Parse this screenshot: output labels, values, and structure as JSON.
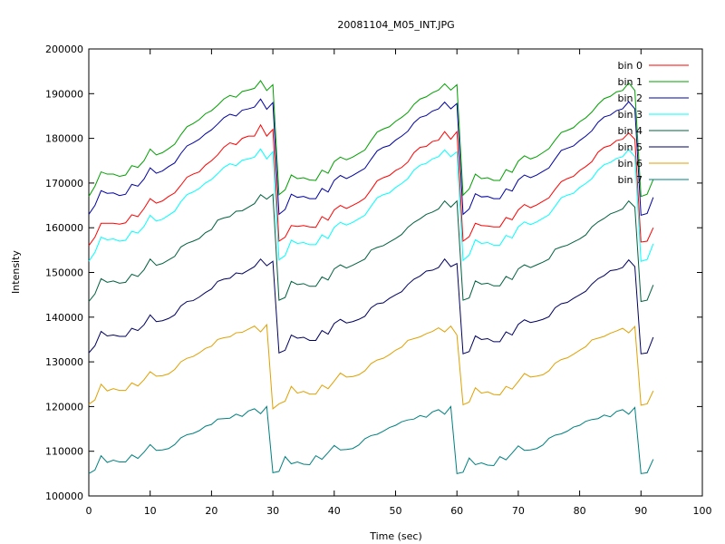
{
  "chart_data": {
    "type": "line",
    "title": "20081104_M05_INT.JPG",
    "xlabel": "Time (sec)",
    "ylabel": "Intensity",
    "xlim": [
      0,
      100
    ],
    "ylim": [
      100000,
      200000
    ],
    "x_ticks": [
      0,
      10,
      20,
      30,
      40,
      50,
      60,
      70,
      80,
      90,
      100
    ],
    "y_ticks": [
      100000,
      110000,
      120000,
      130000,
      140000,
      150000,
      160000,
      170000,
      180000,
      190000,
      200000
    ],
    "x_tick_labels": [
      "0",
      "10",
      "20",
      "30",
      "40",
      "50",
      "60",
      "70",
      "80",
      "90",
      "100"
    ],
    "y_tick_labels": [
      "100000",
      "110000",
      "120000",
      "130000",
      "140000",
      "150000",
      "160000",
      "170000",
      "180000",
      "190000",
      "200000"
    ],
    "legend_position": "top-right",
    "grid": false,
    "x": [
      0,
      1,
      2,
      3,
      4,
      5,
      6,
      7,
      8,
      9,
      10,
      11,
      12,
      13,
      14,
      15,
      16,
      17,
      18,
      19,
      20,
      21,
      22,
      23,
      24,
      25,
      26,
      27,
      28,
      29,
      30,
      31,
      32,
      33,
      34,
      35,
      36,
      37,
      38,
      39,
      40,
      41,
      42,
      43,
      44,
      45,
      46,
      47,
      48,
      49,
      50,
      51,
      52,
      53,
      54,
      55,
      56,
      57,
      58,
      59,
      60,
      61,
      62,
      63,
      64,
      65,
      66,
      67,
      68,
      69,
      70,
      71,
      72,
      73,
      74,
      75,
      76,
      77,
      78,
      79,
      80,
      81,
      82,
      83,
      84,
      85,
      86,
      87,
      88,
      89,
      90,
      91,
      92
    ],
    "series": [
      {
        "name": "bin 0",
        "color": "#ff0000",
        "values": [
          156000,
          157900,
          161000,
          161000,
          161000,
          160800,
          161100,
          162900,
          162500,
          164300,
          166500,
          165500,
          166000,
          167000,
          167800,
          169500,
          171300,
          172000,
          172500,
          174000,
          175000,
          176300,
          178000,
          179000,
          178600,
          180000,
          180500,
          180500,
          183000,
          180500,
          182000,
          157000,
          157900,
          160500,
          160300,
          160500,
          160200,
          160100,
          162500,
          161700,
          164000,
          165000,
          164300,
          165000,
          165700,
          166600,
          168500,
          170500,
          171200,
          171700,
          172800,
          173500,
          174700,
          176800,
          178000,
          178200,
          179300,
          179600,
          181500,
          179800,
          181500,
          157000,
          158000,
          161000,
          160500,
          160400,
          160200,
          160200,
          162300,
          161800,
          164000,
          165200,
          164500,
          165100,
          165900,
          166700,
          168600,
          170300,
          171000,
          171500,
          172800,
          173700,
          174800,
          176900,
          178000,
          178400,
          179500,
          179800,
          181200,
          179800,
          156800,
          157000,
          160000
        ]
      },
      {
        "name": "bin 1",
        "color": "#00a000",
        "values": [
          167000,
          169300,
          172500,
          172000,
          172000,
          171500,
          171800,
          173900,
          173500,
          175000,
          177600,
          176300,
          176800,
          177700,
          178700,
          180800,
          182600,
          183300,
          184200,
          185500,
          186200,
          187400,
          188800,
          189600,
          189200,
          190500,
          190800,
          191200,
          192900,
          190700,
          192000,
          167400,
          168500,
          171800,
          171000,
          171200,
          170700,
          170600,
          172900,
          172200,
          174800,
          175800,
          175200,
          175800,
          176600,
          177400,
          179500,
          181400,
          182100,
          182600,
          183800,
          184700,
          185800,
          187600,
          188800,
          189300,
          190200,
          190800,
          192200,
          190800,
          192000,
          167300,
          168700,
          172000,
          171000,
          171200,
          170600,
          170600,
          173000,
          172400,
          174900,
          176100,
          175400,
          175900,
          176800,
          177700,
          179600,
          181300,
          181800,
          182400,
          183700,
          184600,
          185900,
          187600,
          188900,
          189400,
          190400,
          190700,
          192400,
          190700,
          167000,
          167500,
          170800
        ]
      },
      {
        "name": "bin 2",
        "color": "#0000a0",
        "values": [
          163000,
          165000,
          168300,
          167700,
          167800,
          167200,
          167500,
          169700,
          169300,
          170900,
          173400,
          172200,
          172700,
          173700,
          174500,
          176600,
          178300,
          179000,
          179800,
          181000,
          181900,
          183200,
          184600,
          185400,
          185000,
          186300,
          186600,
          187000,
          188800,
          186500,
          188000,
          163000,
          164100,
          167500,
          166800,
          167000,
          166500,
          166500,
          168800,
          168000,
          170600,
          171700,
          171000,
          171700,
          172500,
          173300,
          175300,
          177200,
          178000,
          178400,
          179600,
          180500,
          181600,
          183500,
          184700,
          185100,
          186100,
          186600,
          188100,
          186600,
          187800,
          163000,
          164200,
          167600,
          166900,
          167000,
          166500,
          166500,
          168700,
          168200,
          170700,
          171800,
          171200,
          171800,
          172600,
          173400,
          175400,
          177300,
          177800,
          178300,
          179500,
          180500,
          181700,
          183600,
          184800,
          185200,
          186200,
          186600,
          188200,
          186600,
          162800,
          163200,
          166800
        ]
      },
      {
        "name": "bin 3",
        "color": "#00ffff",
        "values": [
          152500,
          154500,
          157900,
          157300,
          157500,
          157000,
          157200,
          159200,
          158800,
          160300,
          162800,
          161500,
          161900,
          162800,
          163700,
          165800,
          167400,
          168000,
          168800,
          170000,
          170800,
          172100,
          173500,
          174300,
          173900,
          175100,
          175400,
          175800,
          177600,
          175400,
          177000,
          152800,
          153800,
          157200,
          156500,
          156700,
          156200,
          156200,
          158400,
          157600,
          160100,
          161200,
          160600,
          161200,
          162000,
          162800,
          164800,
          166700,
          167400,
          167800,
          169000,
          169900,
          171000,
          172900,
          174000,
          174400,
          175400,
          175900,
          177400,
          175900,
          177000,
          152700,
          153900,
          157300,
          156500,
          156700,
          156100,
          156100,
          158300,
          157700,
          160200,
          161300,
          160700,
          161300,
          162100,
          162900,
          164800,
          166700,
          167300,
          167700,
          169000,
          169900,
          171000,
          172900,
          174100,
          174600,
          175500,
          175900,
          177500,
          175900,
          152500,
          152900,
          156400
        ]
      },
      {
        "name": "bin 4",
        "color": "#006040",
        "values": [
          143500,
          145200,
          148600,
          147800,
          148100,
          147600,
          147800,
          149600,
          149100,
          150600,
          153000,
          151600,
          152000,
          152800,
          153600,
          155700,
          156500,
          157000,
          157600,
          158900,
          159600,
          161700,
          162200,
          162500,
          163700,
          163800,
          164600,
          165400,
          167400,
          166400,
          167500,
          143800,
          144400,
          148000,
          147300,
          147500,
          146900,
          146900,
          149000,
          148300,
          150800,
          151700,
          151000,
          151600,
          152300,
          153000,
          155000,
          155600,
          156000,
          156800,
          157600,
          158500,
          160100,
          161200,
          162000,
          163000,
          163500,
          164200,
          166000,
          164600,
          166000,
          143800,
          144300,
          148100,
          147400,
          147600,
          147000,
          147000,
          149100,
          148400,
          150800,
          151700,
          151100,
          151700,
          152300,
          153000,
          155200,
          155700,
          156100,
          156800,
          157500,
          158400,
          160200,
          161300,
          162100,
          163100,
          163600,
          164200,
          166000,
          164600,
          143500,
          143800,
          147200
        ]
      },
      {
        "name": "bin 5",
        "color": "#000060",
        "values": [
          132000,
          133600,
          136800,
          135800,
          136000,
          135700,
          135700,
          137500,
          137000,
          138300,
          140500,
          139000,
          139200,
          139700,
          140500,
          142500,
          143500,
          143700,
          144500,
          145500,
          146300,
          148000,
          148500,
          148700,
          149900,
          149700,
          150500,
          151300,
          153000,
          151500,
          152500,
          132000,
          132600,
          136000,
          135300,
          135500,
          134800,
          134800,
          137000,
          136200,
          138600,
          139500,
          138700,
          139000,
          139500,
          140200,
          142100,
          143000,
          143200,
          144200,
          145000,
          145700,
          147300,
          148500,
          149200,
          150300,
          150500,
          151100,
          153000,
          151300,
          152000,
          131800,
          132300,
          135800,
          135000,
          135200,
          134500,
          134500,
          136700,
          136000,
          138400,
          139400,
          138800,
          139100,
          139500,
          140100,
          142100,
          143000,
          143300,
          144200,
          145000,
          145800,
          147400,
          148600,
          149300,
          150400,
          150600,
          151100,
          152800,
          151300,
          131800,
          132000,
          135500
        ]
      },
      {
        "name": "bin 6",
        "color": "#e0a000",
        "values": [
          120500,
          121500,
          125000,
          123500,
          124000,
          123600,
          123600,
          125300,
          124600,
          126000,
          127800,
          126800,
          126900,
          127300,
          128300,
          130000,
          130800,
          131200,
          132000,
          133000,
          133500,
          135000,
          135400,
          135600,
          136500,
          136600,
          137300,
          138000,
          136700,
          138300,
          119500,
          120600,
          121200,
          124500,
          123000,
          123400,
          122800,
          122800,
          124800,
          124000,
          125700,
          127500,
          126600,
          126700,
          127100,
          128000,
          129600,
          130400,
          130800,
          131600,
          132600,
          133300,
          134800,
          135200,
          135600,
          136300,
          136800,
          137600,
          136700,
          138000,
          136000,
          120400,
          121000,
          124200,
          123000,
          123300,
          122700,
          122600,
          124500,
          123900,
          125600,
          127400,
          126600,
          126800,
          127100,
          128000,
          129700,
          130500,
          130900,
          131700,
          132600,
          133400,
          134900,
          135300,
          135700,
          136400,
          136900,
          137500,
          136500,
          137900,
          120300,
          120600,
          123500
        ]
      },
      {
        "name": "bin 7",
        "color": "#008080",
        "values": [
          105000,
          105800,
          109000,
          107500,
          108000,
          107600,
          107600,
          109200,
          108400,
          109800,
          111500,
          110200,
          110300,
          110600,
          111500,
          113000,
          113700,
          114000,
          114600,
          115600,
          116000,
          117200,
          117300,
          117400,
          118300,
          117800,
          119000,
          119500,
          118400,
          120000,
          105200,
          105500,
          108800,
          107200,
          107600,
          107100,
          107000,
          109000,
          108200,
          109700,
          111300,
          110300,
          110400,
          110600,
          111400,
          112800,
          113500,
          113800,
          114500,
          115300,
          115800,
          116600,
          117000,
          117200,
          118000,
          117600,
          118800,
          119300,
          118300,
          120000,
          105000,
          105300,
          108500,
          107000,
          107400,
          106900,
          106800,
          108800,
          108100,
          109600,
          111200,
          110200,
          110300,
          110600,
          111400,
          112900,
          113600,
          113900,
          114500,
          115400,
          115800,
          116700,
          117100,
          117300,
          118100,
          117700,
          118900,
          119300,
          118300,
          119800,
          105000,
          105200,
          108200
        ]
      }
    ]
  }
}
